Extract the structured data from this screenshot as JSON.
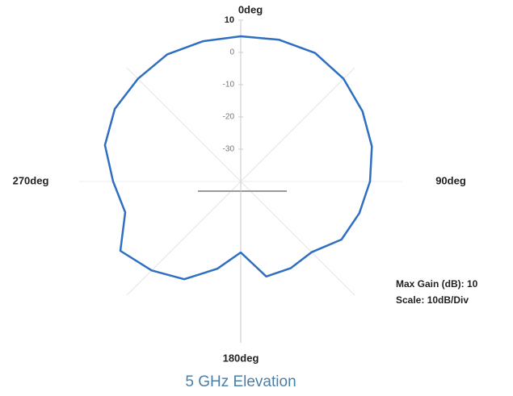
{
  "chart_data": {
    "type": "polar",
    "title": "5 GHz Elevation",
    "annotations": [
      "Max Gain (dB): 10",
      "Scale: 10dB/Div"
    ],
    "rlim": [
      -40,
      10
    ],
    "rticks": [
      10,
      0,
      -10,
      -20,
      -30
    ],
    "thetaticks": [
      {
        "value": 0,
        "label": "0deg"
      },
      {
        "value": 90,
        "label": "90deg"
      },
      {
        "value": 180,
        "label": "180deg"
      },
      {
        "value": 270,
        "label": "270deg"
      }
    ],
    "series": [
      {
        "color": "#2f6fc0",
        "theta": [
          0,
          15,
          30,
          45,
          60,
          75,
          90,
          105,
          120,
          135,
          150,
          165,
          180,
          195,
          210,
          225,
          240,
          255,
          270,
          285,
          300,
          315,
          330,
          345
        ],
        "values": [
          5,
          5.5,
          6,
          5,
          3.5,
          2,
          0,
          -2,
          -4,
          -9,
          -9,
          -9.5,
          -18,
          -12,
          -5,
          -1,
          3,
          -3,
          -0.5,
          3.5,
          5,
          5,
          5.5,
          5
        ]
      }
    ]
  }
}
